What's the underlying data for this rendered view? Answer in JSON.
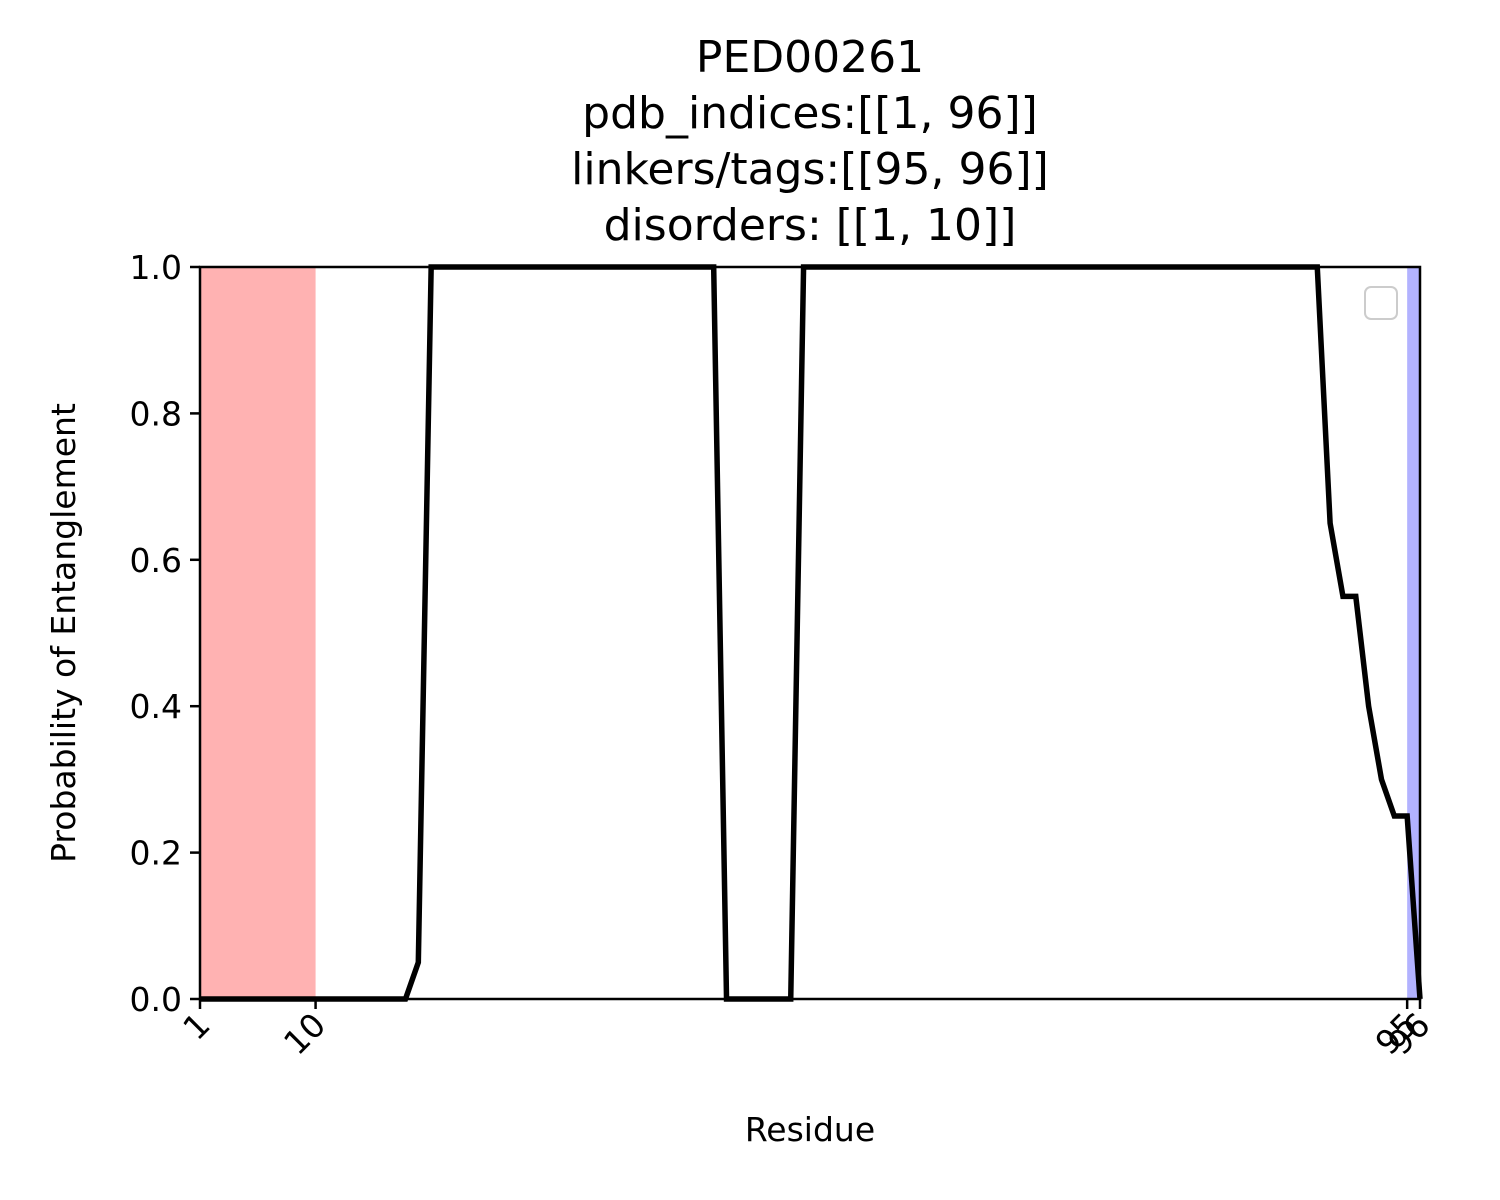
{
  "chart_data": {
    "type": "line",
    "title_lines": [
      "PED00261",
      "pdb_indices:[[1, 96]]",
      "linkers/tags:[[95, 96]]",
      "disorders: [[1, 10]]"
    ],
    "xlabel": "Residue",
    "ylabel": "Probability of Entanglement",
    "xlim": [
      1,
      96
    ],
    "ylim": [
      0,
      1
    ],
    "xticks": [
      1,
      10,
      95,
      96
    ],
    "xtick_labels": [
      "1",
      "10",
      "95",
      "96"
    ],
    "yticks": [
      0,
      0.2,
      0.4,
      0.6,
      0.8,
      1.0
    ],
    "ytick_labels": [
      "0.0",
      "0.2",
      "0.4",
      "0.6",
      "0.8",
      "1.0"
    ],
    "grid": false,
    "legend": {
      "placement": "top-right",
      "entries": []
    },
    "shaded_regions": [
      {
        "x_start": 1,
        "x_end": 10,
        "color": "#ff0000",
        "opacity": 0.3
      },
      {
        "x_start": 95,
        "x_end": 96,
        "color": "#0000ff",
        "opacity": 0.3
      }
    ],
    "series": [
      {
        "color": "#000000",
        "x": [
          1,
          17,
          18,
          19,
          41,
          42,
          47,
          48,
          88,
          89,
          90,
          91,
          92,
          93,
          94,
          95,
          96
        ],
        "y": [
          0,
          0,
          0.05,
          1,
          1,
          0,
          0,
          1,
          1,
          0.65,
          0.55,
          0.55,
          0.4,
          0.3,
          0.25,
          0.25,
          0
        ]
      }
    ]
  }
}
